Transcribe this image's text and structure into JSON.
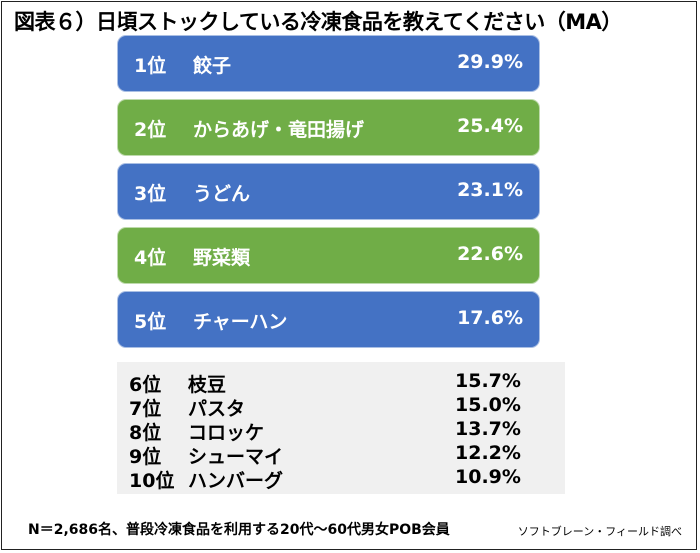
{
  "title": "図表６）日頃ストックしている冷凍食品を教えてください（MA）",
  "colors": {
    "blue": "#4472c4",
    "green": "#70ad47"
  },
  "chart_data": {
    "type": "bar",
    "title": "図表６）日頃ストックしている冷凍食品を教えてください（MA）",
    "unit": "%",
    "top5": [
      {
        "rank": "1位",
        "name": "餃子",
        "value": 29.9,
        "label": "29.9%",
        "color": "blue"
      },
      {
        "rank": "2位",
        "name": "からあげ・竜田揚げ",
        "value": 25.4,
        "label": "25.4%",
        "color": "green"
      },
      {
        "rank": "3位",
        "name": "うどん",
        "value": 23.1,
        "label": "23.1%",
        "color": "blue"
      },
      {
        "rank": "4位",
        "name": "野菜類",
        "value": 22.6,
        "label": "22.6%",
        "color": "green"
      },
      {
        "rank": "5位",
        "name": "チャーハン",
        "value": 17.6,
        "label": "17.6%",
        "color": "blue"
      }
    ],
    "others": [
      {
        "rank": "6位",
        "name": "枝豆",
        "value": 15.7,
        "label": "15.7%"
      },
      {
        "rank": "7位",
        "name": "パスタ",
        "value": 15.0,
        "label": "15.0%"
      },
      {
        "rank": "8位",
        "name": "コロッケ",
        "value": 13.7,
        "label": "13.7%"
      },
      {
        "rank": "9位",
        "name": "シューマイ",
        "value": 12.2,
        "label": "12.2%"
      },
      {
        "rank": "10位",
        "name": "ハンバーグ",
        "value": 10.9,
        "label": "10.9%"
      }
    ]
  },
  "footnote": "N＝2,686名、普段冷凍食品を利用する20代〜60代男女POB会員",
  "source": "ソフトブレーン・フィールド調べ"
}
